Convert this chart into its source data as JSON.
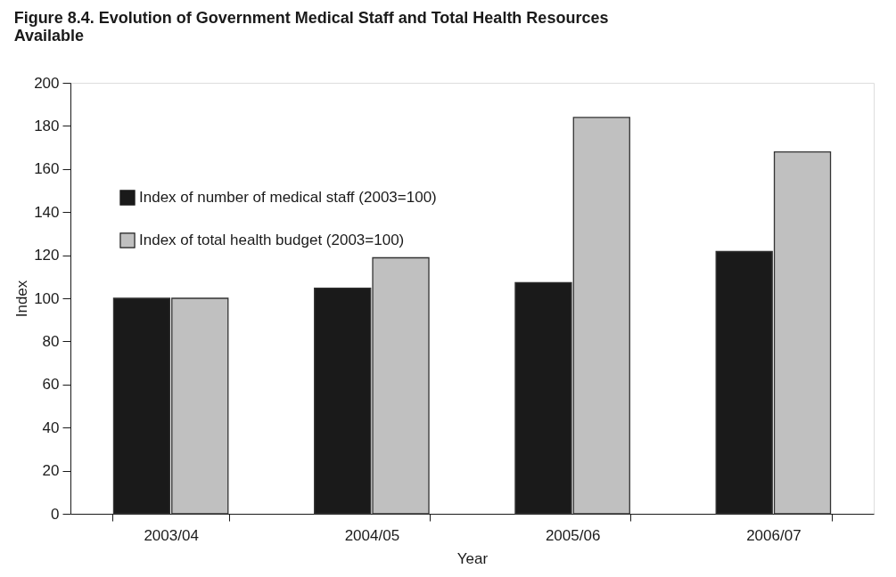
{
  "chart_data": {
    "type": "bar",
    "title": "Figure 8.4. Evolution of Government Medical Staff and Total Health Resources Available",
    "categories": [
      "2003/04",
      "2004/05",
      "2005/06",
      "2006/07"
    ],
    "series": [
      {
        "name": "Index of number of medical staff (2003=100)",
        "color": "#1a1a1a",
        "values": [
          100,
          104.7,
          107.3,
          121.7
        ]
      },
      {
        "name": "Index of total health budget (2003=100)",
        "color": "#c0c0c0",
        "values": [
          100,
          118.8,
          183.9,
          167.9
        ]
      }
    ],
    "xlabel": "Year",
    "ylabel": "Index",
    "ylim": [
      0,
      200
    ],
    "yticks": [
      0,
      20,
      40,
      60,
      80,
      100,
      120,
      140,
      160,
      180,
      200
    ],
    "grid": false,
    "legend": "top left"
  }
}
